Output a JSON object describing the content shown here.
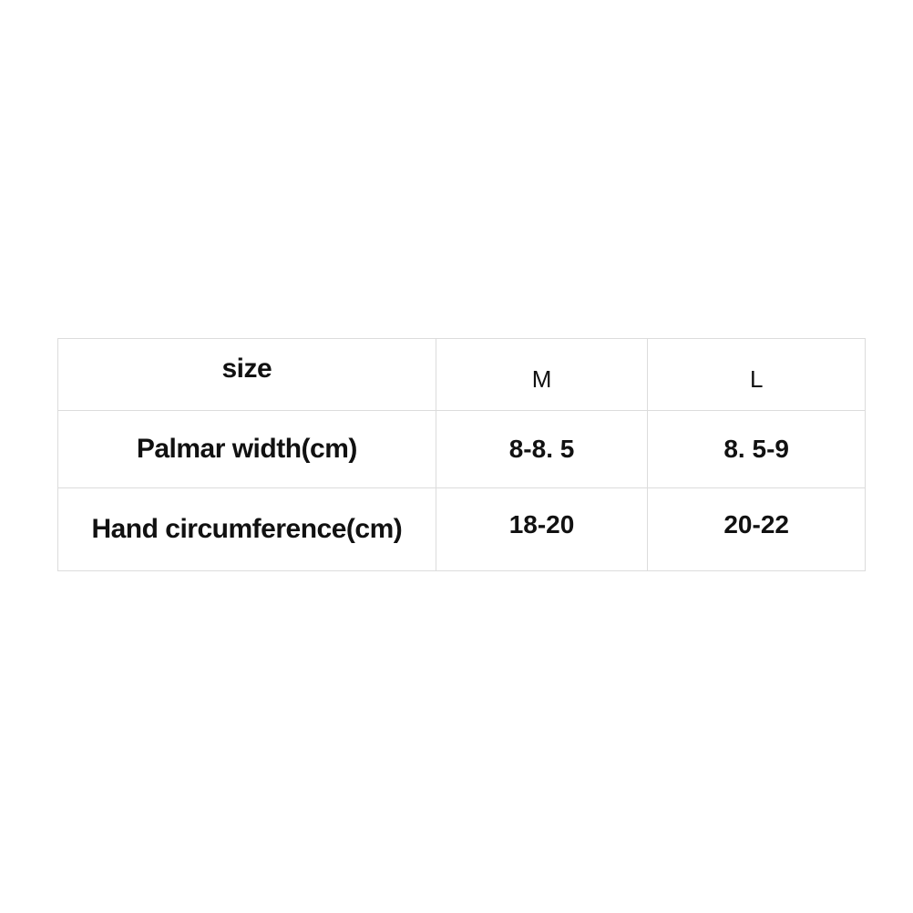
{
  "size_table": {
    "header": [
      "size",
      "M",
      "L"
    ],
    "rows": [
      [
        "Palmar width(cm)",
        "8-8. 5",
        "8. 5-9"
      ],
      [
        "Hand circumference(cm)",
        "18-20",
        "20-22"
      ]
    ],
    "border_color": "#dcdcdc",
    "text_color": "#111111"
  }
}
